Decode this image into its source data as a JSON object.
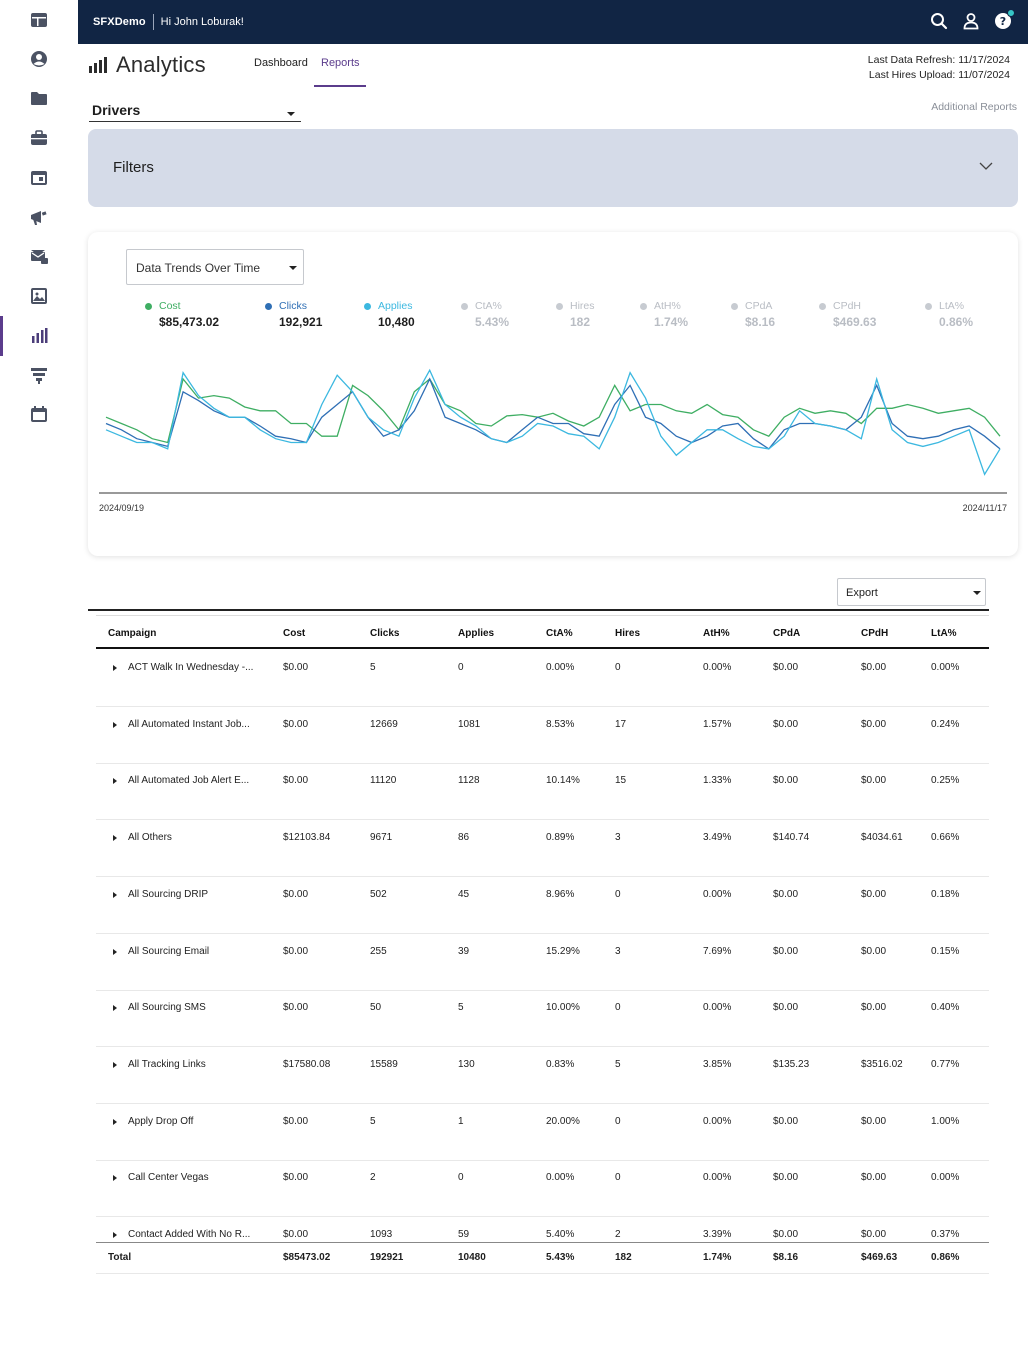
{
  "topbar": {
    "brand": "SFXDemo",
    "greeting": "Hi John Loburak!"
  },
  "sidebar": {
    "items": [
      {
        "icon": "layout-icon"
      },
      {
        "icon": "user-icon"
      },
      {
        "icon": "folder-icon"
      },
      {
        "icon": "briefcase-icon"
      },
      {
        "icon": "window-icon"
      },
      {
        "icon": "megaphone-icon"
      },
      {
        "icon": "mail-icon"
      },
      {
        "icon": "image-icon"
      },
      {
        "icon": "analytics-icon"
      },
      {
        "icon": "funnel-icon"
      },
      {
        "icon": "calendar-icon"
      }
    ],
    "active_index": 8
  },
  "header": {
    "title": "Analytics",
    "tabs": [
      {
        "label": "Dashboard"
      },
      {
        "label": "Reports"
      }
    ],
    "last_refresh": "Last Data Refresh: 11/17/2024",
    "last_hires": "Last Hires Upload: 11/07/2024",
    "additional_reports": "Additional Reports"
  },
  "report_select": {
    "value": "Drivers"
  },
  "filters": {
    "label": "Filters"
  },
  "chart": {
    "view_select": "Data Trends Over Time",
    "metrics": [
      {
        "label": "Cost",
        "value": "$85,473.02",
        "active": true,
        "color": "#3fae63"
      },
      {
        "label": "Clicks",
        "value": "192,921",
        "active": true,
        "color": "#2f6fb5"
      },
      {
        "label": "Applies",
        "value": "10,480",
        "active": true,
        "color": "#3cb8e0"
      },
      {
        "label": "CtA%",
        "value": "5.43%",
        "active": false
      },
      {
        "label": "Hires",
        "value": "182",
        "active": false
      },
      {
        "label": "AtH%",
        "value": "1.74%",
        "active": false
      },
      {
        "label": "CPdA",
        "value": "$8.16",
        "active": false
      },
      {
        "label": "CPdH",
        "value": "$469.63",
        "active": false
      },
      {
        "label": "LtA%",
        "value": "0.86%",
        "active": false
      }
    ],
    "x_start": "2024/09/19",
    "x_end": "2024/11/17"
  },
  "chart_data": {
    "type": "line",
    "title": "Data Trends Over Time",
    "x": [
      "2024/09/19",
      "",
      "",
      "",
      "",
      "",
      "",
      "",
      "",
      "",
      "",
      "",
      "",
      "",
      "",
      "",
      "",
      "",
      "",
      "",
      "",
      "",
      "",
      "",
      "",
      "",
      "",
      "",
      "",
      "",
      "",
      "",
      "",
      "",
      "",
      "",
      "",
      "",
      "",
      "",
      "",
      "",
      "",
      "",
      "",
      "",
      "",
      "",
      "",
      "",
      "",
      "",
      "",
      "",
      "",
      "",
      "",
      "",
      "2024/11/17"
    ],
    "series": [
      {
        "name": "Cost",
        "color": "#3fae63",
        "values": [
          55,
          50,
          45,
          38,
          35,
          85,
          70,
          72,
          70,
          63,
          60,
          60,
          50,
          50,
          40,
          40,
          80,
          72,
          60,
          45,
          75,
          85,
          65,
          60,
          50,
          48,
          56,
          57,
          55,
          58,
          52,
          48,
          55,
          80,
          60,
          65,
          65,
          60,
          58,
          65,
          57,
          55,
          45,
          40,
          55,
          62,
          58,
          60,
          58,
          50,
          62,
          62,
          65,
          62,
          58,
          60,
          62,
          55,
          40
        ]
      },
      {
        "name": "Clicks",
        "color": "#2f6fb5",
        "values": [
          50,
          45,
          38,
          35,
          32,
          75,
          68,
          60,
          55,
          55,
          48,
          40,
          38,
          35,
          55,
          65,
          75,
          55,
          40,
          45,
          60,
          85,
          55,
          50,
          45,
          38,
          35,
          45,
          55,
          50,
          50,
          42,
          40,
          65,
          80,
          55,
          50,
          40,
          35,
          40,
          48,
          50,
          38,
          30,
          45,
          50,
          50,
          48,
          45,
          55,
          80,
          50,
          40,
          38,
          40,
          45,
          48,
          40,
          30
        ]
      },
      {
        "name": "Applies",
        "color": "#3cb8e0",
        "values": [
          45,
          40,
          35,
          35,
          30,
          90,
          72,
          62,
          55,
          55,
          45,
          38,
          35,
          35,
          65,
          88,
          75,
          55,
          45,
          40,
          70,
          92,
          65,
          55,
          48,
          38,
          35,
          40,
          50,
          48,
          42,
          40,
          30,
          55,
          90,
          70,
          40,
          25,
          35,
          45,
          45,
          38,
          32,
          30,
          40,
          60,
          50,
          48,
          45,
          38,
          85,
          45,
          35,
          32,
          35,
          40,
          45,
          10,
          30
        ]
      }
    ],
    "ylim": [
      0,
      100
    ],
    "grid": false,
    "legend": "top"
  },
  "export": {
    "label": "Export"
  },
  "table": {
    "headers": [
      "Campaign",
      "Cost",
      "Clicks",
      "Applies",
      "CtA%",
      "Hires",
      "AtH%",
      "CPdA",
      "CPdH",
      "LtA%"
    ],
    "rows": [
      [
        "ACT Walk In Wednesday -...",
        "$0.00",
        "5",
        "0",
        "0.00%",
        "0",
        "0.00%",
        "$0.00",
        "$0.00",
        "0.00%"
      ],
      [
        "All Automated Instant Job...",
        "$0.00",
        "12669",
        "1081",
        "8.53%",
        "17",
        "1.57%",
        "$0.00",
        "$0.00",
        "0.24%"
      ],
      [
        "All Automated Job Alert E...",
        "$0.00",
        "11120",
        "1128",
        "10.14%",
        "15",
        "1.33%",
        "$0.00",
        "$0.00",
        "0.25%"
      ],
      [
        "All Others",
        "$12103.84",
        "9671",
        "86",
        "0.89%",
        "3",
        "3.49%",
        "$140.74",
        "$4034.61",
        "0.66%"
      ],
      [
        "All Sourcing DRIP",
        "$0.00",
        "502",
        "45",
        "8.96%",
        "0",
        "0.00%",
        "$0.00",
        "$0.00",
        "0.18%"
      ],
      [
        "All Sourcing Email",
        "$0.00",
        "255",
        "39",
        "15.29%",
        "3",
        "7.69%",
        "$0.00",
        "$0.00",
        "0.15%"
      ],
      [
        "All Sourcing SMS",
        "$0.00",
        "50",
        "5",
        "10.00%",
        "0",
        "0.00%",
        "$0.00",
        "$0.00",
        "0.40%"
      ],
      [
        "All Tracking Links",
        "$17580.08",
        "15589",
        "130",
        "0.83%",
        "5",
        "3.85%",
        "$135.23",
        "$3516.02",
        "0.77%"
      ],
      [
        "Apply Drop Off",
        "$0.00",
        "5",
        "1",
        "20.00%",
        "0",
        "0.00%",
        "$0.00",
        "$0.00",
        "1.00%"
      ],
      [
        "Call Center Vegas",
        "$0.00",
        "2",
        "0",
        "0.00%",
        "0",
        "0.00%",
        "$0.00",
        "$0.00",
        "0.00%"
      ],
      [
        "Contact Added With No R...",
        "$0.00",
        "1093",
        "59",
        "5.40%",
        "2",
        "3.39%",
        "$0.00",
        "$0.00",
        "0.37%"
      ]
    ],
    "total": [
      "Total",
      "$85473.02",
      "192921",
      "10480",
      "5.43%",
      "182",
      "1.74%",
      "$8.16",
      "$469.63",
      "0.86%"
    ]
  }
}
